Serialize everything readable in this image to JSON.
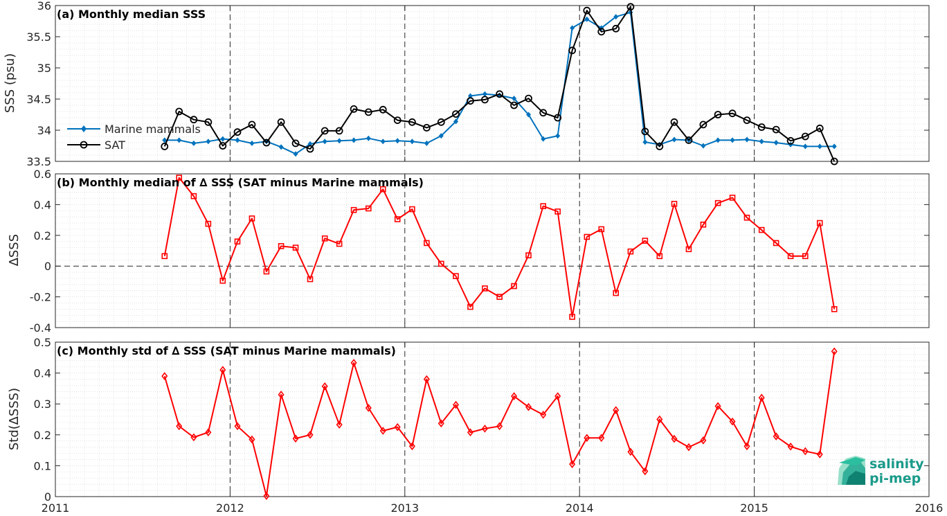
{
  "chart_data": [
    {
      "id": "a",
      "type": "line",
      "title": "(a) Monthly median SSS",
      "ylabel": "SSS (psu)",
      "xlim": [
        2011,
        2016
      ],
      "ylim": [
        33.5,
        36
      ],
      "yticks": [
        33.5,
        34,
        34.5,
        35,
        35.5,
        36
      ],
      "ytick_labels": [
        "33.5",
        "34",
        "34.5",
        "35",
        "35.5",
        "36"
      ],
      "legend": {
        "position": "left"
      },
      "series": [
        {
          "name": "Marine mammals",
          "color": "#0072BD",
          "marker": "diamond",
          "x": [
            2011.625,
            2011.708,
            2011.792,
            2011.875,
            2011.958,
            2012.042,
            2012.125,
            2012.208,
            2012.292,
            2012.375,
            2012.458,
            2012.542,
            2012.625,
            2012.708,
            2012.792,
            2012.875,
            2012.958,
            2013.042,
            2013.125,
            2013.208,
            2013.292,
            2013.375,
            2013.458,
            2013.542,
            2013.625,
            2013.708,
            2013.792,
            2013.875,
            2013.958,
            2014.042,
            2014.125,
            2014.208,
            2014.292,
            2014.375,
            2014.458,
            2014.542,
            2014.625,
            2014.708,
            2014.792,
            2014.875,
            2014.958,
            2015.042,
            2015.125,
            2015.208,
            2015.292,
            2015.375,
            2015.458
          ],
          "values": [
            33.84,
            33.84,
            33.79,
            33.82,
            33.86,
            33.84,
            33.79,
            33.82,
            33.73,
            33.62,
            33.78,
            33.82,
            33.83,
            33.84,
            33.87,
            33.82,
            33.83,
            33.82,
            33.79,
            33.91,
            34.14,
            34.55,
            34.58,
            34.56,
            34.51,
            34.25,
            33.86,
            33.91,
            35.64,
            35.78,
            35.64,
            35.82,
            35.89,
            33.81,
            33.77,
            33.85,
            33.84,
            33.75,
            33.84,
            33.84,
            33.85,
            33.82,
            33.8,
            33.77,
            33.74,
            33.74,
            33.74
          ]
        },
        {
          "name": "SAT",
          "color": "#000000",
          "marker": "circle",
          "x": [
            2011.625,
            2011.708,
            2011.792,
            2011.875,
            2011.958,
            2012.042,
            2012.125,
            2012.208,
            2012.292,
            2012.375,
            2012.458,
            2012.542,
            2012.625,
            2012.708,
            2012.792,
            2012.875,
            2012.958,
            2013.042,
            2013.125,
            2013.208,
            2013.292,
            2013.375,
            2013.458,
            2013.542,
            2013.625,
            2013.708,
            2013.792,
            2013.875,
            2013.958,
            2014.042,
            2014.125,
            2014.208,
            2014.292,
            2014.375,
            2014.458,
            2014.542,
            2014.625,
            2014.708,
            2014.792,
            2014.875,
            2014.958,
            2015.042,
            2015.125,
            2015.208,
            2015.292,
            2015.375,
            2015.458
          ],
          "values": [
            33.74,
            34.3,
            34.17,
            34.13,
            33.75,
            33.97,
            34.09,
            33.8,
            34.13,
            33.79,
            33.7,
            33.99,
            33.99,
            34.34,
            34.29,
            34.33,
            34.16,
            34.13,
            34.04,
            34.13,
            34.26,
            34.47,
            34.49,
            34.58,
            34.4,
            34.51,
            34.28,
            34.2,
            35.28,
            35.92,
            35.58,
            35.63,
            35.98,
            33.98,
            33.74,
            34.13,
            33.84,
            34.09,
            34.25,
            34.27,
            34.16,
            34.05,
            34.01,
            33.83,
            33.9,
            34.03,
            33.5
          ]
        }
      ]
    },
    {
      "id": "b",
      "type": "line",
      "title": "(b) Monthly median of ∆ SSS (SAT minus Marine mammals)",
      "ylabel": "∆SSS",
      "xlim": [
        2011,
        2016
      ],
      "ylim": [
        -0.4,
        0.6
      ],
      "yticks": [
        -0.4,
        -0.2,
        0,
        0.2,
        0.4,
        0.6
      ],
      "ytick_labels": [
        "-0.4",
        "-0.2",
        "0",
        "0.2",
        "0.4",
        "0.6"
      ],
      "zero_line": true,
      "series": [
        {
          "color": "#FF0000",
          "marker": "square",
          "x": [
            2011.625,
            2011.708,
            2011.792,
            2011.875,
            2011.958,
            2012.042,
            2012.125,
            2012.208,
            2012.292,
            2012.375,
            2012.458,
            2012.542,
            2012.625,
            2012.708,
            2012.792,
            2012.875,
            2012.958,
            2013.042,
            2013.125,
            2013.208,
            2013.292,
            2013.375,
            2013.458,
            2013.542,
            2013.625,
            2013.708,
            2013.792,
            2013.875,
            2013.958,
            2014.042,
            2014.125,
            2014.208,
            2014.292,
            2014.375,
            2014.458,
            2014.542,
            2014.625,
            2014.708,
            2014.792,
            2014.875,
            2014.958,
            2015.042,
            2015.125,
            2015.208,
            2015.292,
            2015.375,
            2015.458
          ],
          "values": [
            0.065,
            0.575,
            0.455,
            0.275,
            -0.095,
            0.16,
            0.31,
            -0.035,
            0.13,
            0.12,
            -0.085,
            0.18,
            0.145,
            0.365,
            0.375,
            0.5,
            0.305,
            0.37,
            0.15,
            0.015,
            -0.065,
            -0.265,
            -0.145,
            -0.2,
            -0.13,
            0.07,
            0.39,
            0.355,
            -0.33,
            0.19,
            0.24,
            -0.175,
            0.095,
            0.165,
            0.065,
            0.405,
            0.11,
            0.27,
            0.41,
            0.445,
            0.315,
            0.235,
            0.15,
            0.065,
            0.065,
            0.28,
            -0.28
          ]
        }
      ]
    },
    {
      "id": "c",
      "type": "line",
      "title": "(c) Monthly std of ∆ SSS (SAT minus Marine mammals)",
      "ylabel": "Std(∆SSS)",
      "xlim": [
        2011,
        2016
      ],
      "ylim": [
        0,
        0.5
      ],
      "yticks": [
        0,
        0.1,
        0.2,
        0.3,
        0.4,
        0.5
      ],
      "ytick_labels": [
        "0",
        "0.1",
        "0.2",
        "0.3",
        "0.4",
        "0.5"
      ],
      "xticks": [
        2011,
        2012,
        2013,
        2014,
        2015,
        2016
      ],
      "xtick_labels": [
        "2011",
        "2012",
        "2013",
        "2014",
        "2015",
        "2016"
      ],
      "series": [
        {
          "color": "#FF0000",
          "marker": "diamond-open",
          "x": [
            2011.625,
            2011.708,
            2011.792,
            2011.875,
            2011.958,
            2012.042,
            2012.125,
            2012.208,
            2012.292,
            2012.375,
            2012.458,
            2012.542,
            2012.625,
            2012.708,
            2012.792,
            2012.875,
            2012.958,
            2013.042,
            2013.125,
            2013.208,
            2013.292,
            2013.375,
            2013.458,
            2013.542,
            2013.625,
            2013.708,
            2013.792,
            2013.875,
            2013.958,
            2014.042,
            2014.125,
            2014.208,
            2014.292,
            2014.375,
            2014.458,
            2014.542,
            2014.625,
            2014.708,
            2014.792,
            2014.875,
            2014.958,
            2015.042,
            2015.125,
            2015.208,
            2015.292,
            2015.375,
            2015.458
          ],
          "values": [
            0.39,
            0.228,
            0.192,
            0.208,
            0.41,
            0.228,
            0.185,
            0.002,
            0.33,
            0.188,
            0.2,
            0.357,
            0.233,
            0.433,
            0.287,
            0.213,
            0.225,
            0.163,
            0.38,
            0.237,
            0.297,
            0.208,
            0.22,
            0.228,
            0.325,
            0.29,
            0.265,
            0.325,
            0.105,
            0.19,
            0.19,
            0.28,
            0.145,
            0.082,
            0.25,
            0.187,
            0.16,
            0.182,
            0.293,
            0.243,
            0.163,
            0.32,
            0.195,
            0.162,
            0.147,
            0.137,
            0.47
          ]
        }
      ]
    }
  ],
  "logo": {
    "line1": "salinity",
    "line2": "pi-mep",
    "color": "#1a9a8a"
  }
}
